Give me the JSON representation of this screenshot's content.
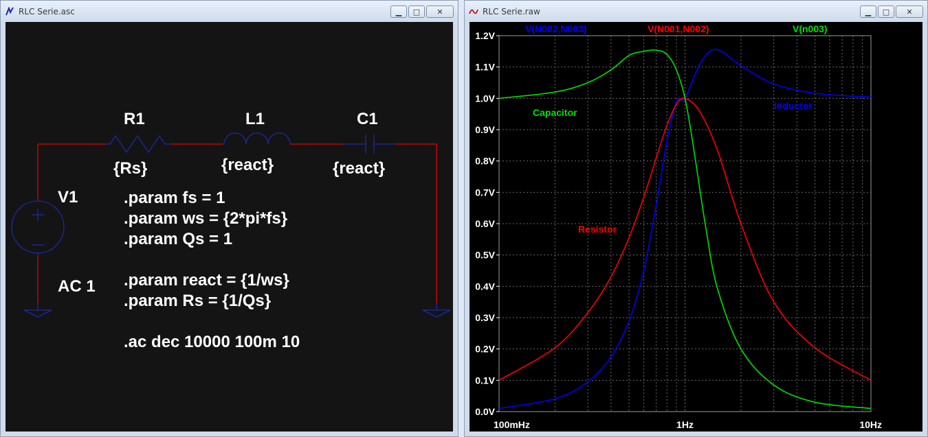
{
  "schematic_window": {
    "title": "RLC Serie.asc",
    "components": {
      "r1": {
        "name": "R1",
        "value": "{Rs}"
      },
      "l1": {
        "name": "L1",
        "value": "{react}"
      },
      "c1": {
        "name": "C1",
        "value": "{react}"
      },
      "v1": {
        "name": "V1",
        "value": "AC 1"
      }
    },
    "directives": [
      ".param fs = 1",
      ".param ws = {2*pi*fs}",
      ".param Qs = 1",
      "",
      ".param react = {1/ws}",
      ".param Rs = {1/Qs}",
      "",
      ".ac dec 10000 100m 10"
    ],
    "wire_color": "#ff0000",
    "component_color": "#1a2aaa"
  },
  "waveform_window": {
    "title": "RLC Serie.raw",
    "trace_labels": {
      "inductor": "Inductor",
      "capacitor": "Capacitor",
      "resistor": "Resistor"
    }
  },
  "chart_data": {
    "type": "line",
    "x_scale": "log",
    "xlim": [
      0.1,
      10
    ],
    "ylim": [
      0,
      1.2
    ],
    "x_ticks": [
      0.1,
      1,
      10
    ],
    "x_tick_labels": [
      "100mHz",
      "1Hz",
      "10Hz"
    ],
    "y_ticks": [
      0,
      0.1,
      0.2,
      0.3,
      0.4,
      0.5,
      0.6,
      0.7,
      0.8,
      0.9,
      1.0,
      1.1,
      1.2
    ],
    "y_tick_labels": [
      "0.0V",
      "0.1V",
      "0.2V",
      "0.3V",
      "0.4V",
      "0.5V",
      "0.6V",
      "0.7V",
      "0.8V",
      "0.9V",
      "1.0V",
      "1.1V",
      "1.2V"
    ],
    "grid": true,
    "legend_position": "top",
    "series": [
      {
        "name": "V(N002,N003)",
        "color": "#0000ff",
        "x": [
          0.1,
          0.2,
          0.3,
          0.4,
          0.5,
          0.6,
          0.7,
          0.8,
          0.9,
          1.0,
          1.2,
          1.4,
          1.6,
          2.0,
          3.0,
          5.0,
          10.0
        ],
        "y": [
          0.01,
          0.041,
          0.095,
          0.175,
          0.289,
          0.45,
          0.659,
          0.863,
          0.99,
          1.0,
          1.109,
          1.154,
          1.147,
          1.104,
          1.046,
          1.016,
          1.004
        ]
      },
      {
        "name": "V(N001,N002)",
        "color": "#ff0000",
        "x": [
          0.1,
          0.2,
          0.3,
          0.4,
          0.5,
          0.6,
          0.7,
          0.8,
          0.9,
          1.0,
          1.2,
          1.5,
          2.0,
          3.0,
          5.0,
          10.0
        ],
        "y": [
          0.1,
          0.204,
          0.316,
          0.43,
          0.555,
          0.684,
          0.81,
          0.914,
          0.981,
          1.0,
          0.958,
          0.832,
          0.6,
          0.351,
          0.204,
          0.1
        ]
      },
      {
        "name": "V(n003)",
        "color": "#00e000",
        "x": [
          0.1,
          0.2,
          0.3,
          0.4,
          0.5,
          0.6,
          0.7,
          0.8,
          0.9,
          1.0,
          1.1,
          1.3,
          1.5,
          2.0,
          3.0,
          5.0,
          10.0
        ],
        "y": [
          1.0,
          1.02,
          1.05,
          1.091,
          1.137,
          1.15,
          1.154,
          1.14,
          1.09,
          1.0,
          0.86,
          0.58,
          0.39,
          0.2,
          0.085,
          0.03,
          0.01
        ]
      }
    ]
  }
}
